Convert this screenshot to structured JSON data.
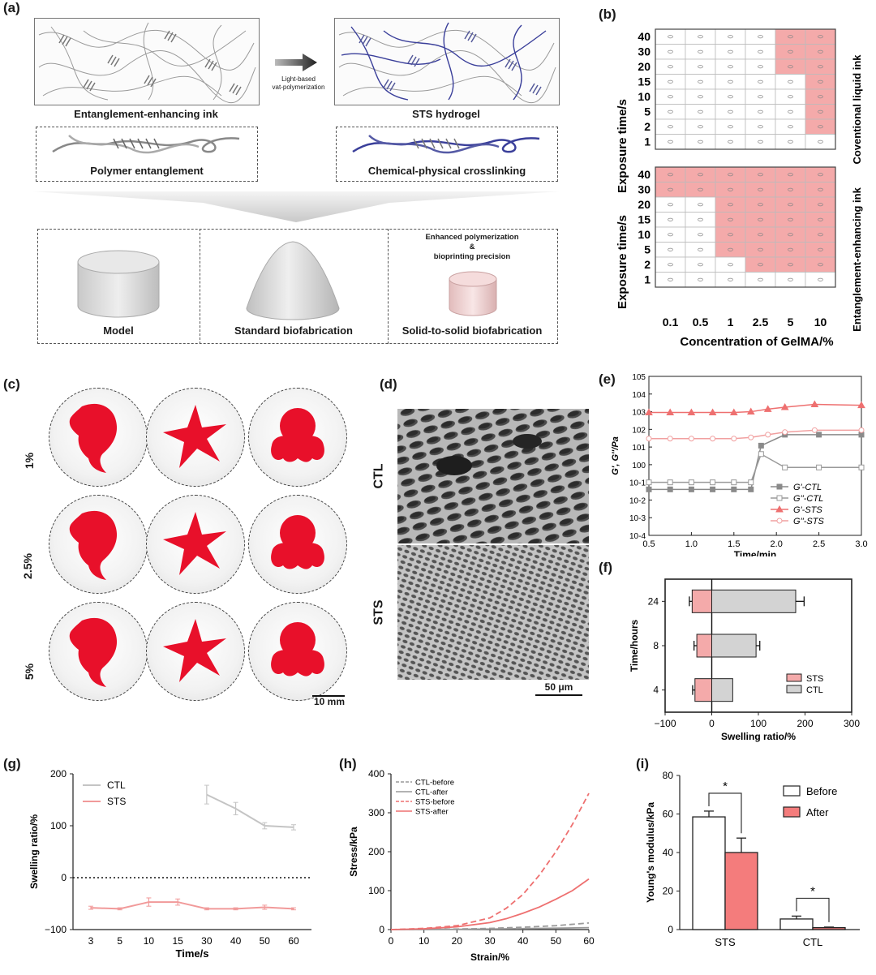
{
  "panels": {
    "a": "(a)",
    "b": "(b)",
    "c": "(c)",
    "d": "(d)",
    "e": "(e)",
    "f": "(f)",
    "g": "(g)",
    "h": "(h)",
    "i": "(i)"
  },
  "panel_a": {
    "ink_label": "Entanglement-enhancing ink",
    "hydrogel_label": "STS hydrogel",
    "arrow_label_1": "Light-based",
    "arrow_label_2": "vat-polymerization",
    "entanglement_label": "Polymer entanglement",
    "crosslink_label": "Chemical-physical crosslinking",
    "model_label": "Model",
    "standard_label": "Standard biofabrication",
    "sts_label": "Solid-to-solid biofabrication",
    "enhanced_1": "Enhanced polymerization",
    "enhanced_2": "&",
    "enhanced_3": "bioprinting precision"
  },
  "panel_b": {
    "ylabel": "Exposure time/s",
    "xlabel": "Concentration of GelMA/%",
    "top_side_label": "Coventional liquid ink",
    "bottom_side_label": "Entanglement-enhancing ink",
    "rows": [
      "40",
      "30",
      "20",
      "15",
      "10",
      "5",
      "2",
      "1"
    ],
    "cols": [
      "0.1",
      "0.5",
      "1",
      "2.5",
      "5",
      "10"
    ],
    "top_filled": [
      [
        0,
        0,
        0,
        0,
        1,
        1
      ],
      [
        0,
        0,
        0,
        0,
        1,
        1
      ],
      [
        0,
        0,
        0,
        0,
        1,
        1
      ],
      [
        0,
        0,
        0,
        0,
        0,
        1
      ],
      [
        0,
        0,
        0,
        0,
        0,
        1
      ],
      [
        0,
        0,
        0,
        0,
        0,
        1
      ],
      [
        0,
        0,
        0,
        0,
        0,
        1
      ],
      [
        0,
        0,
        0,
        0,
        0,
        0
      ]
    ],
    "bottom_filled": [
      [
        1,
        1,
        1,
        1,
        1,
        1
      ],
      [
        1,
        1,
        1,
        1,
        1,
        1
      ],
      [
        0,
        0,
        1,
        1,
        1,
        1
      ],
      [
        0,
        0,
        1,
        1,
        1,
        1
      ],
      [
        0,
        0,
        1,
        1,
        1,
        1
      ],
      [
        0,
        0,
        1,
        1,
        1,
        1
      ],
      [
        0,
        0,
        0,
        1,
        1,
        1
      ],
      [
        0,
        0,
        0,
        0,
        0,
        0
      ]
    ],
    "fill_color": "#f4aaaa"
  },
  "panel_c": {
    "rows": [
      "1%",
      "2.5%",
      "5%"
    ],
    "shapes": [
      "dolphin-shape",
      "starfish-shape",
      "octopus-shape"
    ],
    "scale_bar": "10 mm",
    "color": "#e8102a"
  },
  "panel_d": {
    "top_label": "CTL",
    "bottom_label": "STS",
    "scale_bar": "50 μm"
  },
  "chart_data": [
    {
      "panel": "e",
      "type": "line",
      "xlabel": "Time/min",
      "ylabel": "G', G''/Pa",
      "xlim": [
        0.5,
        3.0
      ],
      "ylim_log10": [
        -4,
        5
      ],
      "yscale": "log",
      "x_ticks": [
        "0.5",
        "1.0",
        "1.5",
        "2.0",
        "2.5",
        "3.0"
      ],
      "y_ticks": [
        "10-4",
        "10-3",
        "10-2",
        "10-1",
        "100",
        "101",
        "102",
        "103",
        "104",
        "105"
      ],
      "legend_position": "bottom-right",
      "series": [
        {
          "name": "G'-CTL",
          "color": "#8a8a8a",
          "marker": "square",
          "filled": true,
          "x": [
            0.5,
            0.75,
            1.0,
            1.25,
            1.5,
            1.7,
            1.82,
            2.1,
            2.5,
            3.0
          ],
          "y": [
            0.04,
            0.04,
            0.04,
            0.04,
            0.04,
            0.04,
            12,
            50,
            50,
            50
          ]
        },
        {
          "name": "G''-CTL",
          "color": "#9a9a9a",
          "marker": "square",
          "filled": false,
          "x": [
            0.5,
            0.75,
            1.0,
            1.25,
            1.5,
            1.7,
            1.82,
            2.1,
            2.5,
            3.0
          ],
          "y": [
            0.1,
            0.1,
            0.1,
            0.1,
            0.1,
            0.1,
            4,
            0.7,
            0.7,
            0.7
          ]
        },
        {
          "name": "G'-STS",
          "color": "#ee7070",
          "marker": "triangle",
          "filled": true,
          "x": [
            0.5,
            0.75,
            1.0,
            1.25,
            1.5,
            1.7,
            1.9,
            2.1,
            2.45,
            3.0
          ],
          "y": [
            900,
            900,
            900,
            900,
            900,
            1000,
            1400,
            1800,
            2600,
            2300
          ]
        },
        {
          "name": "G''-STS",
          "color": "#f1a0a0",
          "marker": "circle",
          "filled": false,
          "x": [
            0.5,
            0.75,
            1.0,
            1.25,
            1.5,
            1.7,
            1.9,
            2.1,
            2.45,
            3.0
          ],
          "y": [
            30,
            30,
            30,
            30,
            30,
            35,
            50,
            70,
            90,
            90
          ]
        }
      ]
    },
    {
      "panel": "f",
      "type": "bar",
      "orientation": "horizontal",
      "xlabel": "Swelling ratio/%",
      "ylabel": "Time/hours",
      "xlim": [
        -100,
        300
      ],
      "x_ticks": [
        "-100",
        "0",
        "100",
        "200",
        "300"
      ],
      "categories": [
        "24",
        "8",
        "4"
      ],
      "legend_position": "bottom-right",
      "series": [
        {
          "name": "STS",
          "color": "#f4aaaa",
          "values": [
            -42,
            -32,
            -36
          ],
          "errors": [
            6,
            6,
            5
          ]
        },
        {
          "name": "CTL",
          "color": "#d3d3d3",
          "values": [
            180,
            95,
            45
          ],
          "errors": [
            18,
            8,
            0
          ]
        }
      ]
    },
    {
      "panel": "g",
      "type": "line",
      "xlabel": "Time/s",
      "ylabel": "Swelling ratio/%",
      "ylim": [
        -100,
        200
      ],
      "y_ticks": [
        "-100",
        "0",
        "100",
        "200"
      ],
      "categories": [
        "3",
        "5",
        "10",
        "15",
        "30",
        "40",
        "50",
        "60"
      ],
      "legend_position": "top-left",
      "series": [
        {
          "name": "CTL",
          "color": "#c4c4c4",
          "values": [
            null,
            null,
            null,
            null,
            160,
            133,
            100,
            97
          ],
          "errors": [
            0,
            0,
            0,
            0,
            18,
            12,
            6,
            5
          ]
        },
        {
          "name": "STS",
          "color": "#f19a9a",
          "values": [
            -58,
            -60,
            -47,
            -47,
            -60,
            -60,
            -57,
            -60
          ],
          "errors": [
            3,
            2,
            8,
            6,
            2,
            2,
            4,
            2
          ]
        }
      ]
    },
    {
      "panel": "h",
      "type": "line",
      "xlabel": "Strain/%",
      "ylabel": "Stress/kPa",
      "xlim": [
        0,
        60
      ],
      "ylim": [
        0,
        400
      ],
      "x_ticks": [
        "0",
        "10",
        "20",
        "30",
        "40",
        "50",
        "60"
      ],
      "y_ticks": [
        "0",
        "100",
        "200",
        "300",
        "400"
      ],
      "legend_position": "top-left",
      "series": [
        {
          "name": "CTL-before",
          "color": "#9a9a9a",
          "dash": true,
          "x": [
            0,
            10,
            20,
            30,
            40,
            50,
            60
          ],
          "y": [
            0,
            0.5,
            1.5,
            3,
            6,
            10,
            17
          ]
        },
        {
          "name": "CTL-after",
          "color": "#9a9a9a",
          "dash": false,
          "x": [
            0,
            10,
            20,
            30,
            40,
            50,
            60
          ],
          "y": [
            0,
            0.3,
            0.8,
            1.5,
            2.5,
            3.5,
            5
          ]
        },
        {
          "name": "STS-before",
          "color": "#ee7070",
          "dash": true,
          "x": [
            0,
            10,
            20,
            30,
            35,
            40,
            45,
            50,
            55,
            60
          ],
          "y": [
            0,
            3,
            10,
            30,
            55,
            90,
            140,
            200,
            270,
            350
          ]
        },
        {
          "name": "STS-after",
          "color": "#ee7070",
          "dash": false,
          "x": [
            0,
            10,
            20,
            30,
            35,
            40,
            45,
            50,
            55,
            60
          ],
          "y": [
            0,
            2,
            7,
            18,
            28,
            42,
            58,
            78,
            100,
            130
          ]
        }
      ]
    },
    {
      "panel": "i",
      "type": "bar",
      "ylabel": "Young's modulus/kPa",
      "ylim": [
        0,
        80
      ],
      "y_ticks": [
        "0",
        "20",
        "40",
        "60",
        "80"
      ],
      "categories": [
        "STS",
        "CTL"
      ],
      "legend_position": "top-right",
      "significance": "*",
      "series": [
        {
          "name": "Before",
          "color": "#ffffff",
          "values": [
            58.5,
            5.5
          ],
          "errors": [
            3,
            1.5
          ]
        },
        {
          "name": "After",
          "color": "#f47c7c",
          "values": [
            40,
            1
          ],
          "errors": [
            7.5,
            0.3
          ]
        }
      ]
    }
  ]
}
